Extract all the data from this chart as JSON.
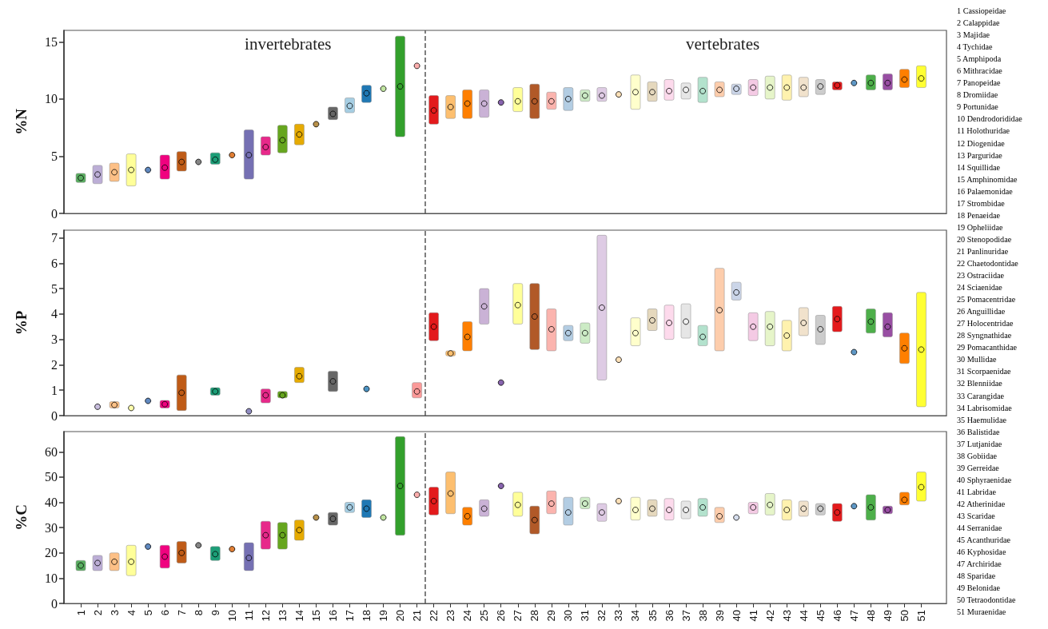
{
  "chart_data": [
    {
      "type": "bar",
      "ylabel": "%N",
      "annotations": [
        "invertebrates",
        "vertebrates"
      ],
      "x": [
        1,
        2,
        3,
        4,
        5,
        6,
        7,
        8,
        9,
        10,
        11,
        12,
        13,
        14,
        15,
        16,
        17,
        18,
        19,
        20,
        21,
        22,
        23,
        24,
        25,
        26,
        27,
        28,
        29,
        30,
        31,
        32,
        33,
        34,
        35,
        36,
        37,
        38,
        39,
        40,
        41,
        42,
        43,
        44,
        45,
        46,
        47,
        48,
        49,
        50,
        51
      ],
      "xlim": [
        0,
        52.5
      ],
      "ylim": [
        0,
        16
      ],
      "yticks": [
        0,
        5,
        10,
        15
      ],
      "tick_labels": "y",
      "ref_lines": [
        {
          "axis": "x",
          "value": 21.5,
          "color": "#555555",
          "line_style": "dashed"
        }
      ],
      "series": [
        {
          "type": "bar",
          "base": [
            2.7,
            2.6,
            2.8,
            2.4,
            null,
            3.0,
            3.7,
            null,
            4.3,
            null,
            3.0,
            5.1,
            5.3,
            6.0,
            null,
            8.2,
            8.8,
            9.7,
            null,
            6.7,
            null,
            7.8,
            8.3,
            8.3,
            8.4,
            null,
            8.9,
            8.3,
            9.1,
            9.0,
            9.8,
            9.8,
            null,
            9.1,
            9.8,
            9.9,
            10.0,
            9.7,
            10.2,
            10.4,
            10.3,
            10.0,
            9.9,
            10.2,
            10.4,
            10.8,
            null,
            10.8,
            10.8,
            11.0,
            11.0
          ],
          "values": [
            0.8,
            1.6,
            1.6,
            2.8,
            null,
            2.1,
            1.7,
            null,
            1.0,
            null,
            4.3,
            1.6,
            2.4,
            1.8,
            null,
            1.1,
            1.3,
            1.5,
            null,
            8.8,
            null,
            2.5,
            2.0,
            2.5,
            2.4,
            null,
            2.1,
            3.0,
            1.5,
            2.0,
            1.0,
            1.2,
            null,
            3.0,
            1.7,
            1.8,
            1.4,
            2.2,
            1.3,
            0.9,
            1.4,
            2.0,
            2.2,
            1.7,
            1.3,
            0.7,
            null,
            1.3,
            1.4,
            1.6,
            1.9
          ],
          "colors": [
            "#5aae61",
            "#bcaed6",
            "#fdc086",
            "#ffff99",
            null,
            "#f0027f",
            "#bf5b17",
            null,
            "#1b9e77",
            null,
            "#7570b3",
            "#e7298a",
            "#66a61e",
            "#e6ab02",
            null,
            "#666666",
            "#a6cee3",
            "#1f78b4",
            null,
            "#33a02c",
            null,
            "#e31a1c",
            "#fdbf6f",
            "#ff7f00",
            "#cab2d6",
            null,
            "#ffff99",
            "#b15928",
            "#fbb4ae",
            "#b3cde3",
            "#ccebc5",
            "#decbe4",
            null,
            "#ffffcc",
            "#e5d8bd",
            "#fddaec",
            "#e6e6e6",
            "#b3e2cd",
            "#fdcdac",
            "#cbd5e8",
            "#f4cae4",
            "#e6f5c9",
            "#fff2ae",
            "#f1e2cc",
            "#cccccc",
            "#e41a1c",
            null,
            "#4daf4a",
            "#984ea3",
            "#ff7f00",
            "#ffff33"
          ]
        },
        {
          "type": "scatter",
          "marker": "circle",
          "values": [
            3.1,
            3.4,
            3.6,
            3.8,
            3.8,
            4.0,
            4.5,
            4.5,
            4.7,
            5.1,
            5.1,
            5.8,
            6.4,
            6.9,
            7.8,
            8.7,
            9.4,
            10.5,
            10.9,
            11.1,
            12.9,
            9.0,
            9.3,
            9.6,
            9.6,
            9.7,
            9.8,
            9.8,
            9.8,
            10.0,
            10.3,
            10.3,
            10.4,
            10.6,
            10.6,
            10.7,
            10.8,
            10.7,
            10.8,
            10.9,
            11.0,
            11.0,
            11.0,
            11.0,
            11.1,
            11.2,
            11.4,
            11.4,
            11.4,
            11.7,
            11.8
          ],
          "colors": [
            "#5aae61",
            "#bcaed6",
            "#fdc086",
            "#ffff99",
            "#386cb0",
            "#f0027f",
            "#bf5b17",
            "#666666",
            "#1b9e77",
            "#d95f02",
            "#7570b3",
            "#e7298a",
            "#66a61e",
            "#e6ab02",
            "#a6761d",
            "#666666",
            "#a6cee3",
            "#1f78b4",
            "#b2df8a",
            "#33a02c",
            "#fb9a99",
            "#e31a1c",
            "#fdbf6f",
            "#ff7f00",
            "#cab2d6",
            "#6a3d9a",
            "#ffff99",
            "#b15928",
            "#fbb4ae",
            "#b3cde3",
            "#ccebc5",
            "#decbe4",
            "#fed9a6",
            "#ffffcc",
            "#e5d8bd",
            "#fddaec",
            "#f2f2f2",
            "#b3e2cd",
            "#fdcdac",
            "#cbd5e8",
            "#f4cae4",
            "#e6f5c9",
            "#fff2ae",
            "#f1e2cc",
            "#cccccc",
            "#e41a1c",
            "#377eb8",
            "#4daf4a",
            "#984ea3",
            "#ff7f00",
            "#ffff33"
          ]
        }
      ]
    },
    {
      "type": "bar",
      "ylabel": "%P",
      "xlim": [
        0,
        52.5
      ],
      "ylim": [
        0,
        7.3
      ],
      "yticks": [
        0,
        1,
        2,
        3,
        4,
        5,
        6,
        7
      ],
      "tick_labels": "y",
      "ref_lines": [
        {
          "axis": "x",
          "value": 21.5,
          "color": "#555555",
          "line_style": "dashed"
        }
      ],
      "series": [
        {
          "type": "bar",
          "x": [
            3,
            6,
            7,
            9,
            12,
            13,
            14,
            16,
            21,
            22,
            23,
            24,
            25,
            27,
            28,
            29,
            30,
            31,
            32,
            34,
            35,
            36,
            37,
            38,
            39,
            40,
            41,
            42,
            43,
            44,
            45,
            46,
            48,
            49,
            50,
            51
          ],
          "base": [
            0.3,
            0.3,
            0.2,
            0.8,
            0.5,
            0.7,
            1.3,
            0.95,
            0.7,
            2.95,
            2.35,
            2.55,
            3.6,
            3.6,
            2.6,
            2.55,
            2.95,
            2.85,
            1.4,
            2.75,
            3.35,
            3.0,
            3.05,
            2.75,
            2.55,
            4.55,
            2.95,
            2.75,
            2.55,
            3.15,
            2.8,
            3.3,
            3.25,
            3.1,
            2.05,
            0.35
          ],
          "values": [
            0.25,
            0.3,
            1.4,
            0.3,
            0.55,
            0.25,
            0.6,
            0.8,
            0.6,
            1.1,
            0.2,
            1.15,
            1.4,
            1.6,
            2.6,
            1.65,
            0.6,
            0.8,
            5.7,
            1.1,
            0.85,
            1.35,
            1.35,
            0.8,
            3.25,
            0.7,
            1.1,
            1.35,
            1.2,
            1.1,
            1.15,
            1.0,
            0.95,
            0.95,
            1.2,
            4.5
          ],
          "colors": [
            "#fdc086",
            "#f0027f",
            "#bf5b17",
            "#1b9e77",
            "#e7298a",
            "#66a61e",
            "#e6ab02",
            "#666666",
            "#fb9a99",
            "#e31a1c",
            "#fdbf6f",
            "#ff7f00",
            "#cab2d6",
            "#ffff99",
            "#b15928",
            "#fbb4ae",
            "#b3cde3",
            "#ccebc5",
            "#decbe4",
            "#ffffcc",
            "#e5d8bd",
            "#fddaec",
            "#e6e6e6",
            "#b3e2cd",
            "#fdcdac",
            "#cbd5e8",
            "#f4cae4",
            "#e6f5c9",
            "#fff2ae",
            "#f1e2cc",
            "#cccccc",
            "#e41a1c",
            "#4daf4a",
            "#984ea3",
            "#ff7f00",
            "#ffff33"
          ]
        },
        {
          "type": "scatter",
          "marker": "circle",
          "x": [
            2,
            3,
            4,
            5,
            6,
            7,
            9,
            11,
            12,
            13,
            14,
            16,
            18,
            21,
            22,
            23,
            24,
            25,
            26,
            27,
            28,
            29,
            30,
            31,
            32,
            33,
            34,
            35,
            36,
            37,
            38,
            39,
            40,
            41,
            42,
            43,
            44,
            45,
            46,
            47,
            48,
            49,
            50,
            51
          ],
          "values": [
            0.35,
            0.42,
            0.3,
            0.58,
            0.45,
            0.9,
            0.95,
            0.17,
            0.8,
            0.8,
            1.55,
            1.35,
            1.05,
            0.95,
            3.5,
            2.45,
            3.1,
            4.3,
            1.3,
            4.35,
            3.9,
            3.4,
            3.25,
            3.25,
            4.25,
            2.2,
            3.25,
            3.75,
            3.65,
            3.7,
            3.1,
            4.15,
            4.85,
            3.5,
            3.5,
            3.15,
            3.65,
            3.4,
            3.8,
            2.5,
            3.7,
            3.5,
            2.65,
            2.6
          ],
          "colors": [
            "#bcaed6",
            "#fdc086",
            "#ffff99",
            "#386cb0",
            "#f0027f",
            "#bf5b17",
            "#1b9e77",
            "#7570b3",
            "#e7298a",
            "#66a61e",
            "#e6ab02",
            "#666666",
            "#1f78b4",
            "#fb9a99",
            "#e31a1c",
            "#fdbf6f",
            "#ff7f00",
            "#cab2d6",
            "#6a3d9a",
            "#ffff99",
            "#b15928",
            "#fbb4ae",
            "#b3cde3",
            "#ccebc5",
            "#decbe4",
            "#fed9a6",
            "#ffffcc",
            "#e5d8bd",
            "#fddaec",
            "#f2f2f2",
            "#b3e2cd",
            "#fdcdac",
            "#cbd5e8",
            "#f4cae4",
            "#e6f5c9",
            "#fff2ae",
            "#f1e2cc",
            "#cccccc",
            "#e41a1c",
            "#377eb8",
            "#4daf4a",
            "#984ea3",
            "#ff7f00",
            "#ffff33"
          ]
        }
      ]
    },
    {
      "type": "bar",
      "ylabel": "%C",
      "x": [
        1,
        2,
        3,
        4,
        5,
        6,
        7,
        8,
        9,
        10,
        11,
        12,
        13,
        14,
        15,
        16,
        17,
        18,
        19,
        20,
        21,
        22,
        23,
        24,
        25,
        26,
        27,
        28,
        29,
        30,
        31,
        32,
        33,
        34,
        35,
        36,
        37,
        38,
        39,
        40,
        41,
        42,
        43,
        44,
        45,
        46,
        47,
        48,
        49,
        50,
        51
      ],
      "xlim": [
        0,
        52.5
      ],
      "xticks": [
        1,
        2,
        3,
        4,
        5,
        6,
        7,
        8,
        9,
        10,
        11,
        12,
        13,
        14,
        15,
        16,
        17,
        18,
        19,
        20,
        21,
        22,
        23,
        24,
        25,
        26,
        27,
        28,
        29,
        30,
        31,
        32,
        33,
        34,
        35,
        36,
        37,
        38,
        39,
        40,
        41,
        42,
        43,
        44,
        45,
        46,
        47,
        48,
        49,
        50,
        51
      ],
      "ylim": [
        0,
        68
      ],
      "yticks": [
        0,
        10,
        20,
        30,
        40,
        50,
        60
      ],
      "ref_lines": [
        {
          "axis": "x",
          "value": 21.5,
          "color": "#555555",
          "line_style": "dashed"
        }
      ],
      "series": [
        {
          "type": "bar",
          "base": [
            13,
            13,
            13,
            11,
            null,
            14,
            16,
            null,
            17,
            null,
            13,
            21.5,
            21.5,
            25,
            null,
            31,
            36,
            34,
            null,
            27,
            null,
            35,
            35.5,
            31,
            34.5,
            null,
            34.5,
            27.5,
            35.5,
            31,
            37.5,
            32.5,
            null,
            33,
            34.5,
            33,
            33.5,
            34.5,
            32,
            null,
            35.5,
            35,
            33,
            34.5,
            35,
            32.5,
            null,
            33,
            35.5,
            39,
            40.5
          ],
          "values": [
            4,
            6,
            7,
            12,
            null,
            9,
            8.5,
            null,
            5.5,
            null,
            11,
            11,
            10.5,
            8,
            null,
            5,
            4,
            7,
            null,
            39,
            null,
            11,
            16.5,
            7,
            6.5,
            null,
            9.5,
            11,
            9,
            11,
            4.5,
            7,
            null,
            9,
            6.5,
            8.5,
            7,
            7,
            6,
            null,
            4.5,
            8.5,
            8,
            6,
            4.5,
            7,
            null,
            10,
            3,
            5,
            11.5
          ],
          "colors": [
            "#5aae61",
            "#bcaed6",
            "#fdc086",
            "#ffff99",
            null,
            "#f0027f",
            "#bf5b17",
            null,
            "#1b9e77",
            null,
            "#7570b3",
            "#e7298a",
            "#66a61e",
            "#e6ab02",
            null,
            "#666666",
            "#a6cee3",
            "#1f78b4",
            null,
            "#33a02c",
            null,
            "#e31a1c",
            "#fdbf6f",
            "#ff7f00",
            "#cab2d6",
            null,
            "#ffff99",
            "#b15928",
            "#fbb4ae",
            "#b3cde3",
            "#ccebc5",
            "#decbe4",
            null,
            "#ffffcc",
            "#e5d8bd",
            "#fddaec",
            "#e6e6e6",
            "#b3e2cd",
            "#fdcdac",
            null,
            "#f4cae4",
            "#e6f5c9",
            "#fff2ae",
            "#f1e2cc",
            "#cccccc",
            "#e41a1c",
            null,
            "#4daf4a",
            "#984ea3",
            "#ff7f00",
            "#ffff33"
          ]
        },
        {
          "type": "scatter",
          "marker": "circle",
          "values": [
            15,
            16,
            16.5,
            16.5,
            22.5,
            18.5,
            20,
            23,
            19.5,
            21.5,
            18,
            27,
            27,
            29,
            34,
            33.5,
            38,
            37.5,
            34,
            46.5,
            43,
            40.5,
            43.5,
            34.5,
            37.5,
            46.5,
            39,
            33,
            39.5,
            36,
            39.5,
            36,
            40.5,
            37,
            37.5,
            37,
            37,
            38,
            34.5,
            34,
            38,
            39,
            37,
            37.5,
            37.5,
            36,
            38.5,
            38,
            37,
            41,
            46
          ],
          "colors": [
            "#5aae61",
            "#bcaed6",
            "#fdc086",
            "#ffff99",
            "#386cb0",
            "#f0027f",
            "#bf5b17",
            "#666666",
            "#1b9e77",
            "#d95f02",
            "#7570b3",
            "#e7298a",
            "#66a61e",
            "#e6ab02",
            "#a6761d",
            "#666666",
            "#a6cee3",
            "#1f78b4",
            "#b2df8a",
            "#33a02c",
            "#fb9a99",
            "#e31a1c",
            "#fdbf6f",
            "#ff7f00",
            "#cab2d6",
            "#6a3d9a",
            "#ffff99",
            "#b15928",
            "#fbb4ae",
            "#b3cde3",
            "#ccebc5",
            "#decbe4",
            "#fed9a6",
            "#ffffcc",
            "#e5d8bd",
            "#fddaec",
            "#f2f2f2",
            "#b3e2cd",
            "#fdcdac",
            "#cbd5e8",
            "#f4cae4",
            "#e6f5c9",
            "#fff2ae",
            "#f1e2cc",
            "#cccccc",
            "#e41a1c",
            "#377eb8",
            "#4daf4a",
            "#984ea3",
            "#ff7f00",
            "#ffff33"
          ]
        }
      ]
    },
    {
      "type": "other",
      "annotations": [
        "1 Cassiopeidae",
        "2 Calappidae",
        "3 Majidae",
        "4 Tychidae",
        "5 Amphipoda",
        "6 Mithracidae",
        "7 Panopeidae",
        "8 Dromiidae",
        "9 Portunidae",
        "10 Dendrodorididae",
        "11 Holothuridae",
        "12 Diogenidae",
        "13 Parguridae",
        "14 Squillidae",
        "15 Amphinomidae",
        "16 Palaemonidae",
        "17 Strombidae",
        "18 Penaeidae",
        "19 Opheliidae",
        "20 Stenopodidae",
        "21 Panlinuridae",
        "22 Chaetodontidae",
        "23 Ostraciidae",
        "24 Sciaenidae",
        "25 Pomacentridae",
        "26 Anguillidae",
        "27 Holocentridae",
        "28 Syngnathidae",
        "29 Pomacanthidae",
        "30 Mullidae",
        "31 Scorpaenidae",
        "32 Blenniidae",
        "33 Carangidae",
        "34 Labrisomidae",
        "35 Haemulidae",
        "36 Balistidae",
        "37 Lutjanidae",
        "38 Gobiidae",
        "39 Gerreidae",
        "40 Sphyraenidae",
        "41 Labridae",
        "42 Atherinidae",
        "43 Scaridae",
        "44 Serranidae",
        "45 Acanthuridae",
        "46 Kyphosidae",
        "47 Archiridae",
        "48 Sparidae",
        "49 Belonidae",
        "50 Tetraodontidae",
        "51 Muraenidae"
      ]
    }
  ]
}
